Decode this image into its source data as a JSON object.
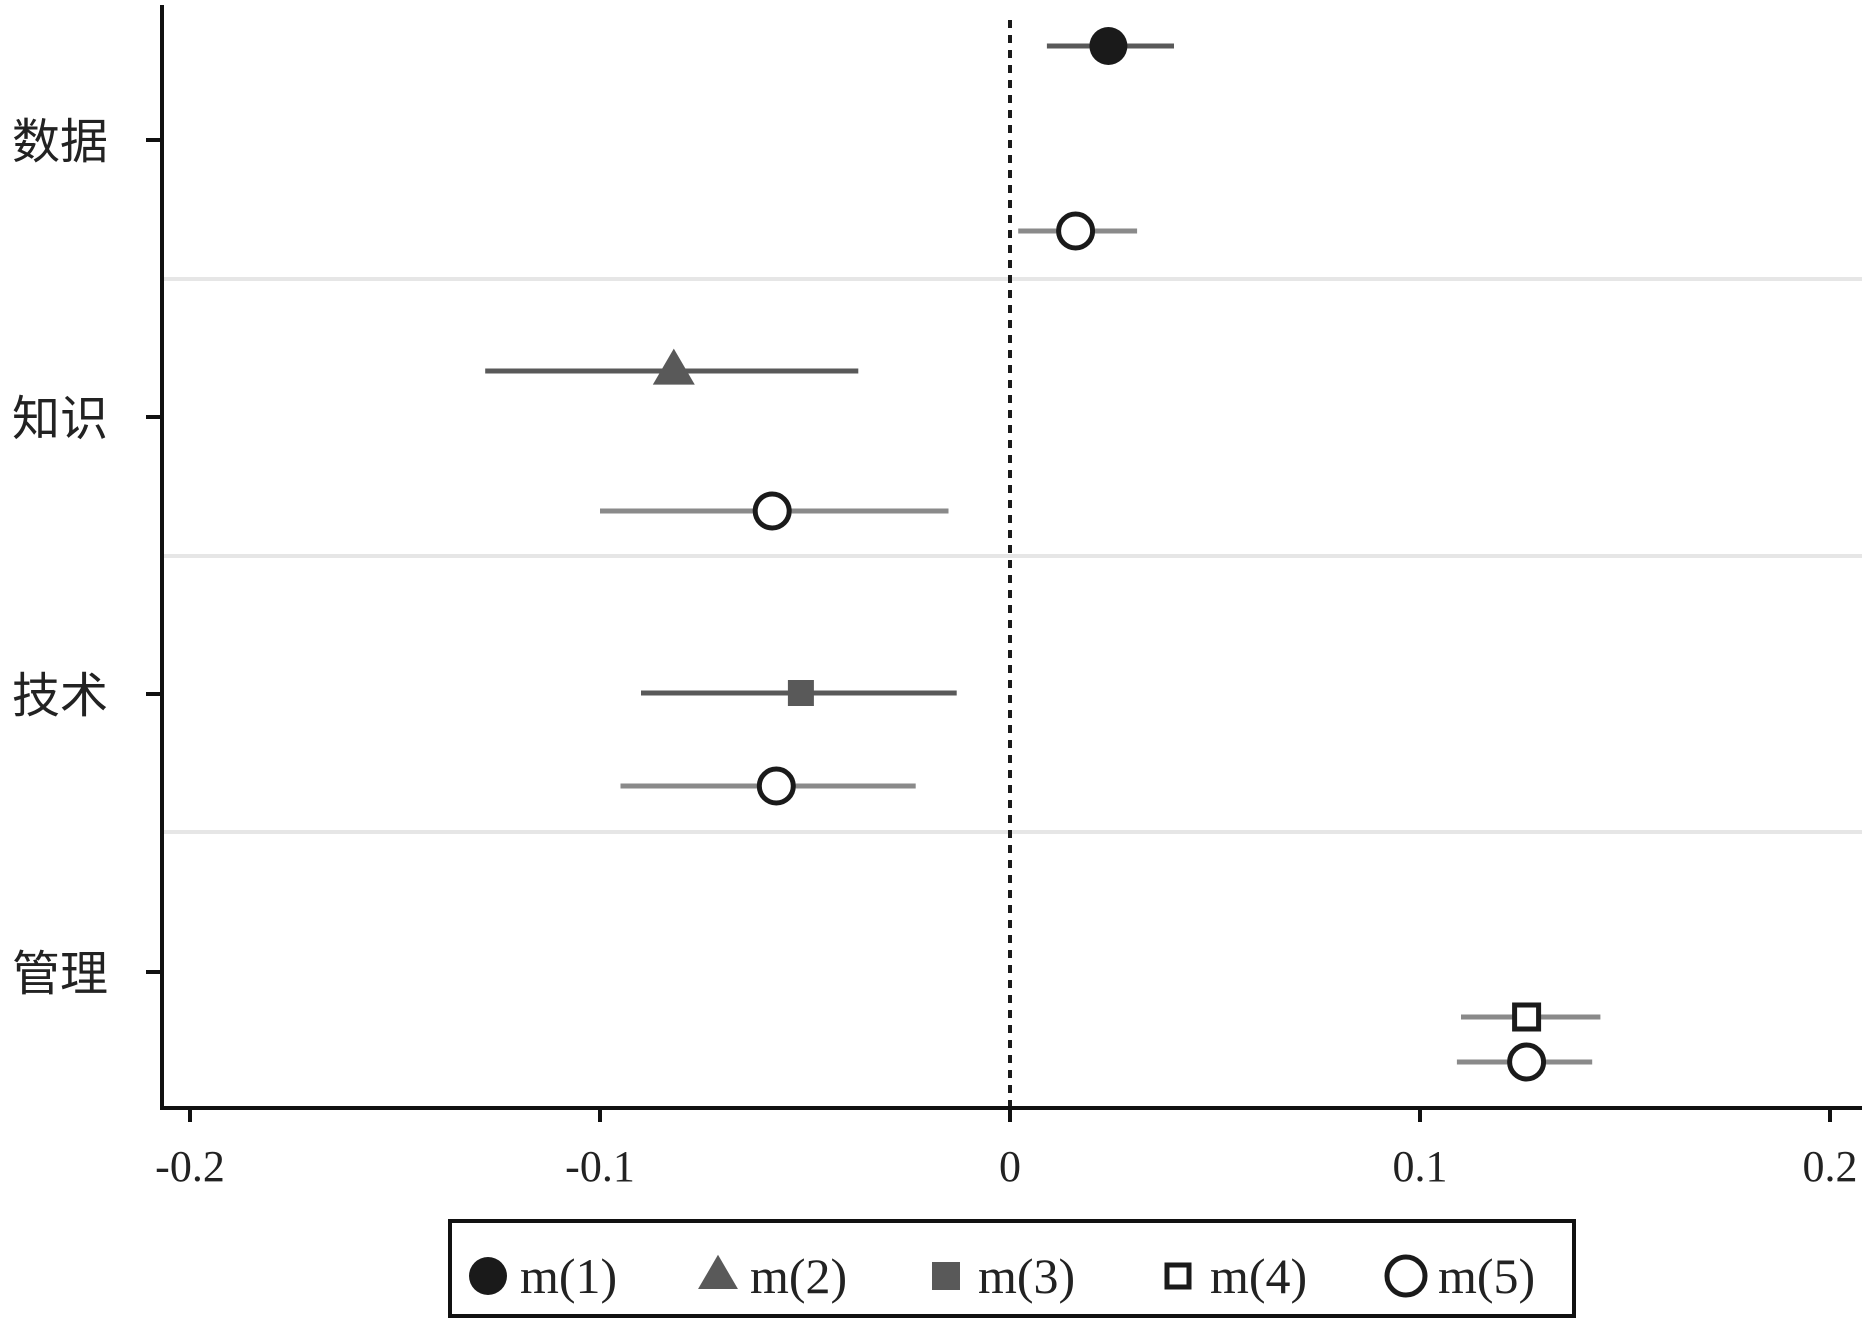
{
  "chart_data": {
    "type": "scatter",
    "subtype": "coefficient-plot",
    "orientation": "horizontal",
    "title": "",
    "xlabel": "",
    "ylabel": "",
    "xlim": [
      -0.207,
      0.207
    ],
    "xticks": [
      -0.2,
      -0.1,
      0,
      0.1,
      0.2
    ],
    "xtick_labels": [
      "-0.2",
      "-0.1",
      "0",
      "0.1",
      "0.2"
    ],
    "reference_line": {
      "x": 0,
      "style": "dotted"
    },
    "categories": [
      "数据",
      "知识",
      "技术",
      "管理"
    ],
    "grid": "horizontal separators between categories",
    "legend": {
      "position": "bottom",
      "entries": [
        {
          "label": "m(1)",
          "marker": "filled-circle",
          "color": "#1a1a1a"
        },
        {
          "label": "m(2)",
          "marker": "filled-triangle",
          "color": "#595959"
        },
        {
          "label": "m(3)",
          "marker": "filled-square",
          "color": "#595959"
        },
        {
          "label": "m(4)",
          "marker": "hollow-square",
          "color": "#1a1a1a"
        },
        {
          "label": "m(5)",
          "marker": "hollow-circle",
          "color": "#1a1a1a"
        }
      ]
    },
    "series": [
      {
        "name": "m(1)",
        "points": [
          {
            "category": "数据",
            "estimate": 0.024,
            "ci": [
              0.009,
              0.04
            ]
          }
        ]
      },
      {
        "name": "m(2)",
        "points": [
          {
            "category": "知识",
            "estimate": -0.082,
            "ci": [
              -0.128,
              -0.037
            ]
          }
        ]
      },
      {
        "name": "m(3)",
        "points": [
          {
            "category": "技术",
            "estimate": -0.051,
            "ci": [
              -0.09,
              -0.013
            ]
          }
        ]
      },
      {
        "name": "m(4)",
        "points": [
          {
            "category": "管理",
            "estimate": 0.126,
            "ci": [
              0.11,
              0.144
            ]
          }
        ]
      },
      {
        "name": "m(5)",
        "points": [
          {
            "category": "数据",
            "estimate": 0.016,
            "ci": [
              0.002,
              0.031
            ]
          },
          {
            "category": "知识",
            "estimate": -0.058,
            "ci": [
              -0.1,
              -0.015
            ]
          },
          {
            "category": "技术",
            "estimate": -0.057,
            "ci": [
              -0.095,
              -0.023
            ]
          },
          {
            "category": "管理",
            "estimate": 0.126,
            "ci": [
              0.109,
              0.142
            ]
          }
        ]
      }
    ],
    "colors": {
      "dark": "#1a1a1a",
      "mid": "#595959",
      "light": "#8a8a8a",
      "grid": "#e6e6e6"
    }
  }
}
